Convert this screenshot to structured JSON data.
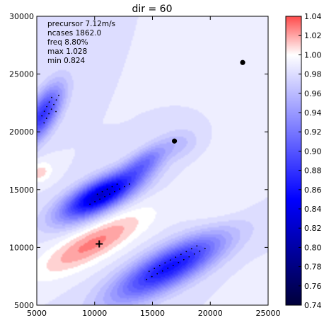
{
  "chart_data": {
    "type": "heatmap",
    "title": "dir = 60",
    "xlabel": "",
    "ylabel": "",
    "xlim": [
      5000,
      25000
    ],
    "ylim": [
      5000,
      30000
    ],
    "x_ticks": [
      5000,
      10000,
      15000,
      20000,
      25000
    ],
    "y_ticks": [
      5000,
      10000,
      15000,
      20000,
      25000,
      30000
    ],
    "grid": false,
    "annotation_lines": [
      "precursor 7.12m/s",
      "ncases 1862.0",
      "freq 8.80%",
      "max 1.028",
      "min 0.824"
    ],
    "colorbar": {
      "min": 0.74,
      "max": 1.04,
      "ticks": [
        0.74,
        0.76,
        0.78,
        0.8,
        0.82,
        0.84,
        0.86,
        0.88,
        0.9,
        0.92,
        0.94,
        0.96,
        0.98,
        1.0,
        1.02,
        1.04
      ],
      "labels": [
        "0.74",
        "0.76",
        "0.78",
        "0.80",
        "0.82",
        "0.84",
        "0.86",
        "0.88",
        "0.90",
        "0.92",
        "0.94",
        "0.96",
        "0.98",
        "1.00",
        "1.02",
        "1.04"
      ],
      "colors": [
        "#00003a",
        "#0000ff",
        "#ffffff",
        "#ff4b4b"
      ]
    },
    "field": {
      "background": 0.985,
      "features": [
        {
          "kind": "blue",
          "cx": 10500,
          "cy": 14500,
          "sx": 2600,
          "sy": 900,
          "angle_deg": 27,
          "value": 0.824
        },
        {
          "kind": "blue",
          "cx": 16500,
          "cy": 8300,
          "sx": 3800,
          "sy": 1100,
          "angle_deg": 28,
          "value": 0.86
        },
        {
          "kind": "blue",
          "cx": 5500,
          "cy": 21500,
          "sx": 2000,
          "sy": 800,
          "angle_deg": 60,
          "value": 0.88
        },
        {
          "kind": "blue",
          "cx": 14500,
          "cy": 17500,
          "sx": 1600,
          "sy": 700,
          "angle_deg": 35,
          "value": 0.93
        },
        {
          "kind": "blue",
          "cx": 17500,
          "cy": 19000,
          "sx": 1200,
          "sy": 900,
          "angle_deg": 20,
          "value": 0.965
        },
        {
          "kind": "red",
          "cx": 9800,
          "cy": 10300,
          "sx": 3600,
          "sy": 1000,
          "angle_deg": 28,
          "value": 1.028
        },
        {
          "kind": "red",
          "cx": 5300,
          "cy": 16500,
          "sx": 800,
          "sy": 600,
          "angle_deg": 30,
          "value": 1.01
        },
        {
          "kind": "red",
          "cx": 21000,
          "cy": 14000,
          "sx": 2000,
          "sy": 3000,
          "angle_deg": 0,
          "value": 0.995
        }
      ]
    },
    "significance_regions": [
      {
        "cx": 11200,
        "cy": 14600,
        "sx": 2300,
        "sy": 520,
        "angle_deg": 27,
        "spacing": 480
      },
      {
        "cx": 16800,
        "cy": 8600,
        "sx": 3200,
        "sy": 650,
        "angle_deg": 28,
        "spacing": 520
      },
      {
        "cx": 6200,
        "cy": 22000,
        "sx": 1800,
        "sy": 520,
        "angle_deg": 62,
        "spacing": 450
      }
    ],
    "markers": [
      {
        "type": "circle",
        "x": 22800,
        "y": 26000
      },
      {
        "type": "circle",
        "x": 16900,
        "y": 19200
      },
      {
        "type": "plus",
        "x": 10400,
        "y": 10300
      }
    ]
  }
}
